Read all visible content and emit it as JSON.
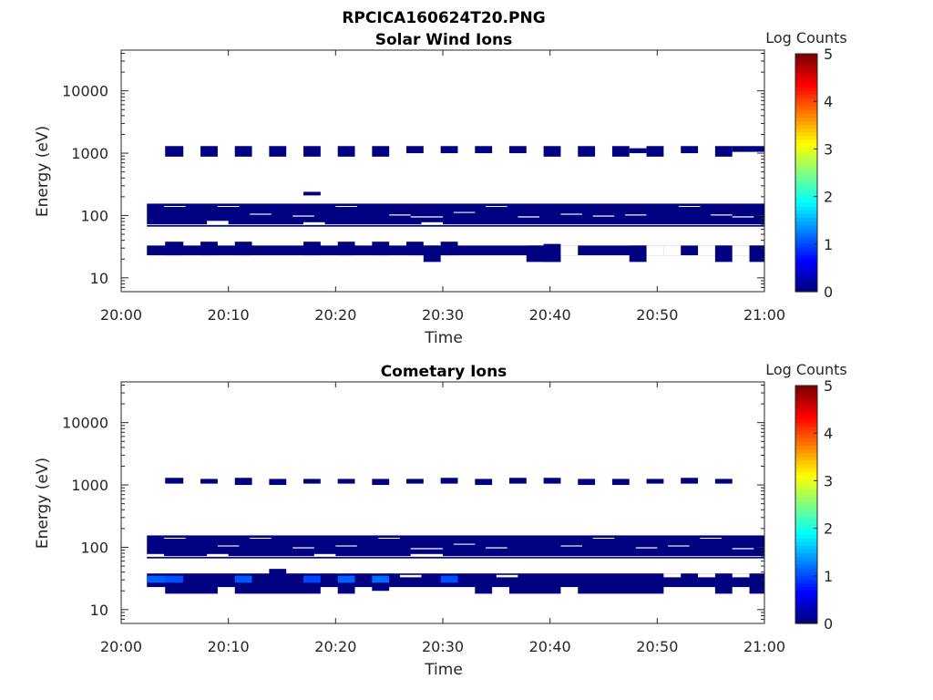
{
  "figure": {
    "title": "RPCICA160624T20.PNG"
  },
  "colors": {
    "low": "#00008f",
    "mid": "#1a1aff",
    "axis": "#262626"
  },
  "chart_data": [
    {
      "type": "heatmap",
      "title": "Solar Wind Ions",
      "xlabel": "Time",
      "ylabel": "Energy (eV)",
      "x_ticks": [
        "20:00",
        "20:10",
        "20:20",
        "20:30",
        "20:40",
        "20:50",
        "21:00"
      ],
      "x_range_minutes": [
        0,
        60
      ],
      "y_scale": "log",
      "y_ticks": [
        "10",
        "100",
        "1000",
        "10000"
      ],
      "y_range": [
        6,
        45000
      ],
      "colorbar": {
        "label": "Log Counts",
        "range": [
          0,
          5
        ],
        "ticks": [
          "0",
          "1",
          "2",
          "3",
          "4",
          "5"
        ],
        "colormap": "jet"
      },
      "blocks": [
        {
          "t0": 4.1,
          "t1": 5.8,
          "e0": 880,
          "e1": 1300,
          "v": 0.1
        },
        {
          "t0": 7.4,
          "t1": 9.0,
          "e0": 880,
          "e1": 1300,
          "v": 0.1
        },
        {
          "t0": 10.6,
          "t1": 12.2,
          "e0": 880,
          "e1": 1300,
          "v": 0.1
        },
        {
          "t0": 13.8,
          "t1": 15.4,
          "e0": 880,
          "e1": 1300,
          "v": 0.1
        },
        {
          "t0": 17.0,
          "t1": 18.6,
          "e0": 880,
          "e1": 1300,
          "v": 0.1
        },
        {
          "t0": 20.2,
          "t1": 21.8,
          "e0": 880,
          "e1": 1300,
          "v": 0.1
        },
        {
          "t0": 23.4,
          "t1": 25.0,
          "e0": 880,
          "e1": 1300,
          "v": 0.1
        },
        {
          "t0": 26.6,
          "t1": 28.2,
          "e0": 1000,
          "e1": 1300,
          "v": 0.1
        },
        {
          "t0": 29.8,
          "t1": 31.4,
          "e0": 1000,
          "e1": 1300,
          "v": 0.1
        },
        {
          "t0": 33.0,
          "t1": 34.6,
          "e0": 1000,
          "e1": 1300,
          "v": 0.1
        },
        {
          "t0": 36.2,
          "t1": 37.8,
          "e0": 1000,
          "e1": 1300,
          "v": 0.1
        },
        {
          "t0": 39.4,
          "t1": 41.0,
          "e0": 880,
          "e1": 1300,
          "v": 0.1
        },
        {
          "t0": 42.6,
          "t1": 44.2,
          "e0": 880,
          "e1": 1300,
          "v": 0.1
        },
        {
          "t0": 45.8,
          "t1": 47.4,
          "e0": 880,
          "e1": 1300,
          "v": 0.1
        },
        {
          "t0": 47.4,
          "t1": 49.0,
          "e0": 1000,
          "e1": 1200,
          "v": 0.1
        },
        {
          "t0": 49.0,
          "t1": 50.6,
          "e0": 880,
          "e1": 1300,
          "v": 0.1
        },
        {
          "t0": 52.2,
          "t1": 53.8,
          "e0": 1000,
          "e1": 1300,
          "v": 0.1
        },
        {
          "t0": 55.4,
          "t1": 57.0,
          "e0": 880,
          "e1": 1300,
          "v": 0.1
        },
        {
          "t0": 57.0,
          "t1": 58.6,
          "e0": 1050,
          "e1": 1300,
          "v": 0.1
        },
        {
          "t0": 58.6,
          "t1": 60.0,
          "e0": 1050,
          "e1": 1300,
          "v": 0.1
        },
        {
          "t0": 17.0,
          "t1": 18.6,
          "e0": 210,
          "e1": 240,
          "v": 0.1
        },
        {
          "t0": 2.4,
          "t1": 60.0,
          "e0": 72,
          "e1": 155,
          "v": 0.1
        },
        {
          "t0": 2.4,
          "t1": 60.0,
          "e0": 66,
          "e1": 70,
          "v": 0.1
        },
        {
          "t0": 2.4,
          "t1": 60.0,
          "e0": 23,
          "e1": 33,
          "v": 0.1
        },
        {
          "t0": 4.1,
          "t1": 5.8,
          "e0": 23,
          "e1": 38,
          "v": 0.1
        },
        {
          "t0": 7.4,
          "t1": 9.0,
          "e0": 23,
          "e1": 38,
          "v": 0.1
        },
        {
          "t0": 10.6,
          "t1": 12.2,
          "e0": 23,
          "e1": 38,
          "v": 0.1
        },
        {
          "t0": 17.0,
          "t1": 18.6,
          "e0": 23,
          "e1": 38,
          "v": 0.1
        },
        {
          "t0": 20.2,
          "t1": 21.8,
          "e0": 23,
          "e1": 38,
          "v": 0.1
        },
        {
          "t0": 23.4,
          "t1": 25.0,
          "e0": 23,
          "e1": 38,
          "v": 0.1
        },
        {
          "t0": 26.6,
          "t1": 28.2,
          "e0": 23,
          "e1": 38,
          "v": 0.1
        },
        {
          "t0": 28.2,
          "t1": 29.8,
          "e0": 18,
          "e1": 33,
          "v": 0.1
        },
        {
          "t0": 29.8,
          "t1": 31.4,
          "e0": 23,
          "e1": 38,
          "v": 0.1
        },
        {
          "t0": 37.8,
          "t1": 41.0,
          "e0": 18,
          "e1": 33,
          "v": 0.1
        },
        {
          "t0": 39.4,
          "t1": 41.0,
          "e0": 18,
          "e1": 35,
          "v": 0.1
        },
        {
          "t0": 47.4,
          "t1": 49.0,
          "e0": 18,
          "e1": 33,
          "v": 0.1
        },
        {
          "t0": 55.4,
          "t1": 57.0,
          "e0": 18,
          "e1": 33,
          "v": 0.1
        },
        {
          "t0": 58.6,
          "t1": 60.0,
          "e0": 18,
          "e1": 33,
          "v": 0.1
        }
      ],
      "gaps": [
        {
          "t0": 41.0,
          "t1": 42.6,
          "e0": 23,
          "e1": 33
        },
        {
          "t0": 49.0,
          "t1": 50.6,
          "e0": 23,
          "e1": 33
        },
        {
          "t0": 50.6,
          "t1": 52.2,
          "e0": 23,
          "e1": 33
        },
        {
          "t0": 53.8,
          "t1": 55.4,
          "e0": 23,
          "e1": 33
        },
        {
          "t0": 57.0,
          "t1": 58.6,
          "e0": 23,
          "e1": 33
        },
        {
          "t0": 8.0,
          "t1": 10.0,
          "e0": 72,
          "e1": 82
        },
        {
          "t0": 17.0,
          "t1": 19.0,
          "e0": 72,
          "e1": 78
        },
        {
          "t0": 28.0,
          "t1": 30.0,
          "e0": 72,
          "e1": 78
        },
        {
          "t0": 2.4,
          "t1": 60.0,
          "e0": 64,
          "e1": 66
        },
        {
          "t0": 4.0,
          "t1": 6.0,
          "e0": 138,
          "e1": 142
        },
        {
          "t0": 9.0,
          "t1": 11.0,
          "e0": 138,
          "e1": 142
        },
        {
          "t0": 12.0,
          "t1": 14.0,
          "e0": 103,
          "e1": 107
        },
        {
          "t0": 16.0,
          "t1": 18.0,
          "e0": 96,
          "e1": 100
        },
        {
          "t0": 20.0,
          "t1": 22.0,
          "e0": 138,
          "e1": 142
        },
        {
          "t0": 25.0,
          "t1": 27.0,
          "e0": 100,
          "e1": 104
        },
        {
          "t0": 27.0,
          "t1": 30.0,
          "e0": 93,
          "e1": 97
        },
        {
          "t0": 31.0,
          "t1": 33.0,
          "e0": 110,
          "e1": 114
        },
        {
          "t0": 34.0,
          "t1": 36.0,
          "e0": 138,
          "e1": 142
        },
        {
          "t0": 37.0,
          "t1": 39.0,
          "e0": 93,
          "e1": 97
        },
        {
          "t0": 41.0,
          "t1": 43.0,
          "e0": 103,
          "e1": 107
        },
        {
          "t0": 44.0,
          "t1": 46.0,
          "e0": 96,
          "e1": 100
        },
        {
          "t0": 47.0,
          "t1": 49.0,
          "e0": 100,
          "e1": 104
        },
        {
          "t0": 52.0,
          "t1": 54.0,
          "e0": 138,
          "e1": 142
        },
        {
          "t0": 55.0,
          "t1": 57.0,
          "e0": 100,
          "e1": 104
        },
        {
          "t0": 57.0,
          "t1": 59.0,
          "e0": 93,
          "e1": 97
        }
      ]
    },
    {
      "type": "heatmap",
      "title": "Cometary Ions",
      "xlabel": "Time",
      "ylabel": "Energy (eV)",
      "x_ticks": [
        "20:00",
        "20:10",
        "20:20",
        "20:30",
        "20:40",
        "20:50",
        "21:00"
      ],
      "x_range_minutes": [
        0,
        60
      ],
      "y_scale": "log",
      "y_ticks": [
        "10",
        "100",
        "1000",
        "10000"
      ],
      "y_range": [
        6,
        45000
      ],
      "colorbar": {
        "label": "Log Counts",
        "range": [
          0,
          5
        ],
        "ticks": [
          "0",
          "1",
          "2",
          "3",
          "4",
          "5"
        ],
        "colormap": "jet"
      },
      "blocks": [
        {
          "t0": 4.1,
          "t1": 5.8,
          "e0": 1050,
          "e1": 1300,
          "v": 0.1
        },
        {
          "t0": 7.4,
          "t1": 9.0,
          "e0": 1050,
          "e1": 1250,
          "v": 0.1
        },
        {
          "t0": 10.6,
          "t1": 12.2,
          "e0": 1000,
          "e1": 1300,
          "v": 0.1
        },
        {
          "t0": 13.8,
          "t1": 15.4,
          "e0": 1000,
          "e1": 1250,
          "v": 0.1
        },
        {
          "t0": 17.0,
          "t1": 18.6,
          "e0": 1050,
          "e1": 1250,
          "v": 0.1
        },
        {
          "t0": 20.2,
          "t1": 21.8,
          "e0": 1050,
          "e1": 1250,
          "v": 0.1
        },
        {
          "t0": 23.4,
          "t1": 25.0,
          "e0": 1000,
          "e1": 1250,
          "v": 0.1
        },
        {
          "t0": 26.6,
          "t1": 28.2,
          "e0": 1050,
          "e1": 1250,
          "v": 0.1
        },
        {
          "t0": 29.8,
          "t1": 31.4,
          "e0": 1050,
          "e1": 1300,
          "v": 0.1
        },
        {
          "t0": 33.0,
          "t1": 34.6,
          "e0": 1000,
          "e1": 1250,
          "v": 0.1
        },
        {
          "t0": 36.2,
          "t1": 37.8,
          "e0": 1050,
          "e1": 1300,
          "v": 0.1
        },
        {
          "t0": 39.4,
          "t1": 41.0,
          "e0": 1050,
          "e1": 1300,
          "v": 0.1
        },
        {
          "t0": 42.6,
          "t1": 44.2,
          "e0": 1000,
          "e1": 1250,
          "v": 0.1
        },
        {
          "t0": 45.8,
          "t1": 47.4,
          "e0": 1000,
          "e1": 1250,
          "v": 0.1
        },
        {
          "t0": 49.0,
          "t1": 50.6,
          "e0": 1050,
          "e1": 1250,
          "v": 0.1
        },
        {
          "t0": 52.2,
          "t1": 53.8,
          "e0": 1050,
          "e1": 1300,
          "v": 0.1
        },
        {
          "t0": 55.4,
          "t1": 57.0,
          "e0": 1050,
          "e1": 1250,
          "v": 0.1
        },
        {
          "t0": 2.4,
          "t1": 60.0,
          "e0": 72,
          "e1": 155,
          "v": 0.1
        },
        {
          "t0": 2.4,
          "t1": 60.0,
          "e0": 66,
          "e1": 70,
          "v": 0.1
        },
        {
          "t0": 2.4,
          "t1": 60.0,
          "e0": 23,
          "e1": 38,
          "v": 0.1
        },
        {
          "t0": 4.1,
          "t1": 9.0,
          "e0": 18,
          "e1": 25,
          "v": 0.1
        },
        {
          "t0": 10.6,
          "t1": 18.6,
          "e0": 18,
          "e1": 25,
          "v": 0.1
        },
        {
          "t0": 20.2,
          "t1": 21.8,
          "e0": 18,
          "e1": 25,
          "v": 0.1
        },
        {
          "t0": 23.4,
          "t1": 25.0,
          "e0": 20,
          "e1": 25,
          "v": 0.1
        },
        {
          "t0": 33.0,
          "t1": 34.6,
          "e0": 18,
          "e1": 25,
          "v": 0.1
        },
        {
          "t0": 36.2,
          "t1": 41.0,
          "e0": 18,
          "e1": 25,
          "v": 0.1
        },
        {
          "t0": 42.6,
          "t1": 50.6,
          "e0": 18,
          "e1": 25,
          "v": 0.1
        },
        {
          "t0": 55.4,
          "t1": 57.0,
          "e0": 18,
          "e1": 25,
          "v": 0.1
        },
        {
          "t0": 58.6,
          "t1": 60.0,
          "e0": 18,
          "e1": 25,
          "v": 0.1
        },
        {
          "t0": 13.8,
          "t1": 15.4,
          "e0": 36,
          "e1": 45,
          "v": 0.1
        },
        {
          "t0": 2.4,
          "t1": 4.1,
          "e0": 27,
          "e1": 35,
          "v": 0.5
        },
        {
          "t0": 4.1,
          "t1": 5.8,
          "e0": 27,
          "e1": 35,
          "v": 0.4
        },
        {
          "t0": 10.6,
          "t1": 12.2,
          "e0": 27,
          "e1": 35,
          "v": 0.45
        },
        {
          "t0": 17.0,
          "t1": 18.6,
          "e0": 27,
          "e1": 35,
          "v": 0.35
        },
        {
          "t0": 20.2,
          "t1": 21.8,
          "e0": 27,
          "e1": 35,
          "v": 0.5
        },
        {
          "t0": 23.4,
          "t1": 25.0,
          "e0": 27,
          "e1": 35,
          "v": 0.55
        },
        {
          "t0": 29.8,
          "t1": 31.4,
          "e0": 27,
          "e1": 35,
          "v": 0.4
        }
      ],
      "gaps": [
        {
          "t0": 2.4,
          "t1": 60.0,
          "e0": 64,
          "e1": 66
        },
        {
          "t0": 2.4,
          "t1": 4.0,
          "e0": 72,
          "e1": 78
        },
        {
          "t0": 8.0,
          "t1": 10.0,
          "e0": 72,
          "e1": 78
        },
        {
          "t0": 18.0,
          "t1": 20.0,
          "e0": 72,
          "e1": 78
        },
        {
          "t0": 27.0,
          "t1": 30.0,
          "e0": 72,
          "e1": 78
        },
        {
          "t0": 4.0,
          "t1": 6.0,
          "e0": 138,
          "e1": 142
        },
        {
          "t0": 9.0,
          "t1": 11.0,
          "e0": 103,
          "e1": 107
        },
        {
          "t0": 12.0,
          "t1": 14.0,
          "e0": 138,
          "e1": 142
        },
        {
          "t0": 16.0,
          "t1": 18.0,
          "e0": 96,
          "e1": 100
        },
        {
          "t0": 20.0,
          "t1": 22.0,
          "e0": 103,
          "e1": 107
        },
        {
          "t0": 24.0,
          "t1": 26.0,
          "e0": 138,
          "e1": 142
        },
        {
          "t0": 27.0,
          "t1": 30.0,
          "e0": 93,
          "e1": 97
        },
        {
          "t0": 31.0,
          "t1": 33.0,
          "e0": 110,
          "e1": 114
        },
        {
          "t0": 34.0,
          "t1": 36.0,
          "e0": 96,
          "e1": 100
        },
        {
          "t0": 41.0,
          "t1": 43.0,
          "e0": 103,
          "e1": 107
        },
        {
          "t0": 44.0,
          "t1": 46.0,
          "e0": 138,
          "e1": 142
        },
        {
          "t0": 48.0,
          "t1": 50.0,
          "e0": 96,
          "e1": 100
        },
        {
          "t0": 51.0,
          "t1": 53.0,
          "e0": 103,
          "e1": 107
        },
        {
          "t0": 54.0,
          "t1": 56.0,
          "e0": 138,
          "e1": 142
        },
        {
          "t0": 57.0,
          "t1": 59.0,
          "e0": 93,
          "e1": 97
        },
        {
          "t0": 26.0,
          "t1": 28.0,
          "e0": 33,
          "e1": 36
        },
        {
          "t0": 35.0,
          "t1": 37.0,
          "e0": 33,
          "e1": 36
        },
        {
          "t0": 50.6,
          "t1": 52.2,
          "e0": 33,
          "e1": 38
        },
        {
          "t0": 53.8,
          "t1": 55.4,
          "e0": 33,
          "e1": 38
        },
        {
          "t0": 57.0,
          "t1": 58.6,
          "e0": 33,
          "e1": 38
        }
      ]
    }
  ]
}
